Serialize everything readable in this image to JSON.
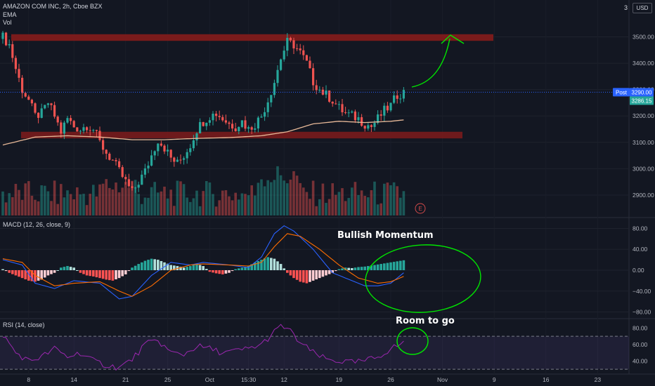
{
  "header": {
    "symbol_line": "AMAZON COM INC, 2h, Cboe BZX",
    "indicator_ema": "EMA",
    "indicator_vol": "Vol",
    "currency": "USD",
    "price_scale_top_partial": "3"
  },
  "panes": {
    "macd_title": "MACD (12, 26, close, 9)",
    "rsi_title": "RSI (14, close)"
  },
  "annotations": {
    "bullish_momentum": "Bullish Momentum",
    "room_to_go": "Room to go"
  },
  "price_tags": {
    "post_label": "Post",
    "post_value": "3290.00",
    "last_value": "3286.15"
  },
  "earnings_marker": "E",
  "colors": {
    "background": "#131722",
    "up": "#26a69a",
    "down": "#ef5350",
    "ema": "#e8b998",
    "zone": "#7f1b1b",
    "macd_line": "#2962ff",
    "signal_line": "#ff6d00",
    "rsi_line": "#9c27b0",
    "annotation": "#00e600",
    "post_tag": "#2962ff"
  },
  "chart_data": [
    {
      "type": "candlestick",
      "title": "AMAZON COM INC, 2h, Cboe BZX",
      "ylim": [
        2820,
        3560
      ],
      "y_ticks": [
        2900,
        3000,
        3100,
        3200,
        3300,
        3400,
        3500
      ],
      "y_tick_labels": [
        "2900.00",
        "3000.00",
        "3100.00",
        "3200.00",
        "3300.00",
        "3400.00",
        "3500.00"
      ],
      "x_ticks": [
        "8",
        "14",
        "21",
        "25",
        "Oct",
        "15:30",
        "12",
        "19",
        "26",
        "Nov",
        "9",
        "16",
        "23"
      ],
      "close_path": [
        [
          0,
          3500
        ],
        [
          2,
          3470
        ],
        [
          4,
          3380
        ],
        [
          6,
          3300
        ],
        [
          8,
          3260
        ],
        [
          10,
          3200
        ],
        [
          12,
          3210
        ],
        [
          14,
          3250
        ],
        [
          16,
          3200
        ],
        [
          18,
          3140
        ],
        [
          20,
          3190
        ],
        [
          22,
          3160
        ],
        [
          24,
          3150
        ],
        [
          26,
          3165
        ],
        [
          28,
          3150
        ],
        [
          30,
          3100
        ],
        [
          32,
          3060
        ],
        [
          34,
          3030
        ],
        [
          36,
          2990
        ],
        [
          38,
          2950
        ],
        [
          40,
          2910
        ],
        [
          42,
          2950
        ],
        [
          44,
          2990
        ],
        [
          46,
          3050
        ],
        [
          48,
          3110
        ],
        [
          50,
          3080
        ],
        [
          52,
          3040
        ],
        [
          54,
          3020
        ],
        [
          56,
          3050
        ],
        [
          58,
          3090
        ],
        [
          60,
          3150
        ],
        [
          62,
          3180
        ],
        [
          64,
          3200
        ],
        [
          66,
          3210
        ],
        [
          68,
          3190
        ],
        [
          70,
          3170
        ],
        [
          72,
          3160
        ],
        [
          74,
          3180
        ],
        [
          76,
          3150
        ],
        [
          78,
          3170
        ],
        [
          80,
          3200
        ],
        [
          82,
          3260
        ],
        [
          84,
          3330
        ],
        [
          86,
          3420
        ],
        [
          88,
          3480
        ],
        [
          90,
          3470
        ],
        [
          92,
          3440
        ],
        [
          94,
          3400
        ],
        [
          96,
          3330
        ],
        [
          98,
          3300
        ],
        [
          100,
          3280
        ],
        [
          102,
          3260
        ],
        [
          104,
          3230
        ],
        [
          106,
          3210
        ],
        [
          108,
          3200
        ],
        [
          110,
          3190
        ],
        [
          112,
          3170
        ],
        [
          114,
          3160
        ],
        [
          116,
          3190
        ],
        [
          118,
          3220
        ],
        [
          120,
          3240
        ],
        [
          122,
          3280
        ],
        [
          124,
          3290
        ]
      ],
      "ema_path": [
        [
          0,
          3090
        ],
        [
          10,
          3120
        ],
        [
          20,
          3125
        ],
        [
          30,
          3120
        ],
        [
          40,
          3110
        ],
        [
          50,
          3110
        ],
        [
          60,
          3115
        ],
        [
          70,
          3118
        ],
        [
          80,
          3125
        ],
        [
          88,
          3140
        ],
        [
          96,
          3170
        ],
        [
          104,
          3180
        ],
        [
          112,
          3175
        ],
        [
          120,
          3180
        ],
        [
          124,
          3185
        ]
      ],
      "volume_ylim": [
        0,
        1.0
      ],
      "resistance_zone": [
        3485,
        3510
      ],
      "support_zone": [
        3115,
        3140
      ],
      "projection_target": 3500
    },
    {
      "type": "line",
      "title": "MACD (12, 26, close, 9)",
      "ylim": [
        -90,
        90
      ],
      "y_ticks": [
        80,
        40,
        0,
        -40,
        -80
      ],
      "y_tick_labels": [
        "80.00",
        "40.00",
        "0.00",
        "−40.00",
        "−80.00"
      ],
      "series": [
        {
          "name": "MACD",
          "points": [
            [
              0,
              20
            ],
            [
              6,
              10
            ],
            [
              10,
              -25
            ],
            [
              16,
              -35
            ],
            [
              22,
              -20
            ],
            [
              30,
              -25
            ],
            [
              36,
              -55
            ],
            [
              40,
              -50
            ],
            [
              46,
              -10
            ],
            [
              52,
              15
            ],
            [
              58,
              10
            ],
            [
              62,
              15
            ],
            [
              70,
              10
            ],
            [
              76,
              5
            ],
            [
              80,
              25
            ],
            [
              84,
              70
            ],
            [
              87,
              85
            ],
            [
              90,
              75
            ],
            [
              96,
              40
            ],
            [
              102,
              -5
            ],
            [
              108,
              -20
            ],
            [
              112,
              -30
            ],
            [
              116,
              -30
            ],
            [
              120,
              -25
            ],
            [
              124,
              -5
            ]
          ]
        },
        {
          "name": "Signal",
          "points": [
            [
              0,
              22
            ],
            [
              6,
              15
            ],
            [
              10,
              -10
            ],
            [
              16,
              -30
            ],
            [
              22,
              -25
            ],
            [
              30,
              -22
            ],
            [
              36,
              -40
            ],
            [
              40,
              -50
            ],
            [
              46,
              -30
            ],
            [
              52,
              0
            ],
            [
              58,
              10
            ],
            [
              62,
              12
            ],
            [
              70,
              10
            ],
            [
              76,
              8
            ],
            [
              80,
              15
            ],
            [
              84,
              45
            ],
            [
              88,
              70
            ],
            [
              92,
              65
            ],
            [
              98,
              40
            ],
            [
              104,
              10
            ],
            [
              110,
              -15
            ],
            [
              116,
              -25
            ],
            [
              120,
              -22
            ],
            [
              124,
              -12
            ]
          ]
        }
      ],
      "histogram": [
        [
          0,
          2
        ],
        [
          2,
          -5
        ],
        [
          4,
          -10
        ],
        [
          6,
          -15
        ],
        [
          8,
          -20
        ],
        [
          10,
          -22
        ],
        [
          12,
          -18
        ],
        [
          14,
          -10
        ],
        [
          16,
          -5
        ],
        [
          18,
          5
        ],
        [
          20,
          8
        ],
        [
          22,
          5
        ],
        [
          24,
          -5
        ],
        [
          26,
          -10
        ],
        [
          28,
          -12
        ],
        [
          30,
          -15
        ],
        [
          32,
          -18
        ],
        [
          34,
          -20
        ],
        [
          36,
          -15
        ],
        [
          38,
          -8
        ],
        [
          40,
          5
        ],
        [
          42,
          12
        ],
        [
          44,
          18
        ],
        [
          46,
          22
        ],
        [
          48,
          20
        ],
        [
          50,
          15
        ],
        [
          52,
          10
        ],
        [
          54,
          8
        ],
        [
          56,
          5
        ],
        [
          58,
          8
        ],
        [
          60,
          12
        ],
        [
          62,
          8
        ],
        [
          64,
          -3
        ],
        [
          66,
          -6
        ],
        [
          68,
          -8
        ],
        [
          70,
          -5
        ],
        [
          72,
          2
        ],
        [
          74,
          5
        ],
        [
          76,
          8
        ],
        [
          78,
          15
        ],
        [
          80,
          20
        ],
        [
          82,
          25
        ],
        [
          84,
          22
        ],
        [
          86,
          12
        ],
        [
          88,
          -5
        ],
        [
          90,
          -15
        ],
        [
          92,
          -22
        ],
        [
          94,
          -25
        ],
        [
          96,
          -20
        ],
        [
          98,
          -15
        ],
        [
          100,
          -10
        ],
        [
          102,
          -5
        ],
        [
          104,
          2
        ],
        [
          106,
          5
        ],
        [
          108,
          4
        ],
        [
          110,
          6
        ],
        [
          112,
          7
        ],
        [
          114,
          9
        ],
        [
          116,
          11
        ],
        [
          118,
          13
        ],
        [
          120,
          15
        ],
        [
          122,
          17
        ],
        [
          124,
          19
        ]
      ]
    },
    {
      "type": "line",
      "title": "RSI (14, close)",
      "ylim": [
        25,
        88
      ],
      "y_ticks": [
        80,
        60,
        40
      ],
      "y_tick_labels": [
        "80.00",
        "60.00",
        "40.00"
      ],
      "bands": [
        30,
        70
      ],
      "series": [
        {
          "name": "RSI",
          "points": [
            [
              0,
              72
            ],
            [
              4,
              50
            ],
            [
              8,
              40
            ],
            [
              12,
              45
            ],
            [
              16,
              55
            ],
            [
              20,
              45
            ],
            [
              24,
              50
            ],
            [
              28,
              40
            ],
            [
              32,
              35
            ],
            [
              36,
              32
            ],
            [
              40,
              42
            ],
            [
              44,
              60
            ],
            [
              48,
              65
            ],
            [
              52,
              50
            ],
            [
              56,
              48
            ],
            [
              60,
              58
            ],
            [
              64,
              55
            ],
            [
              68,
              50
            ],
            [
              72,
              52
            ],
            [
              76,
              55
            ],
            [
              80,
              60
            ],
            [
              84,
              75
            ],
            [
              86,
              82
            ],
            [
              88,
              80
            ],
            [
              92,
              62
            ],
            [
              96,
              50
            ],
            [
              100,
              42
            ],
            [
              104,
              40
            ],
            [
              108,
              38
            ],
            [
              112,
              40
            ],
            [
              116,
              45
            ],
            [
              120,
              55
            ],
            [
              124,
              62
            ]
          ]
        }
      ]
    }
  ]
}
